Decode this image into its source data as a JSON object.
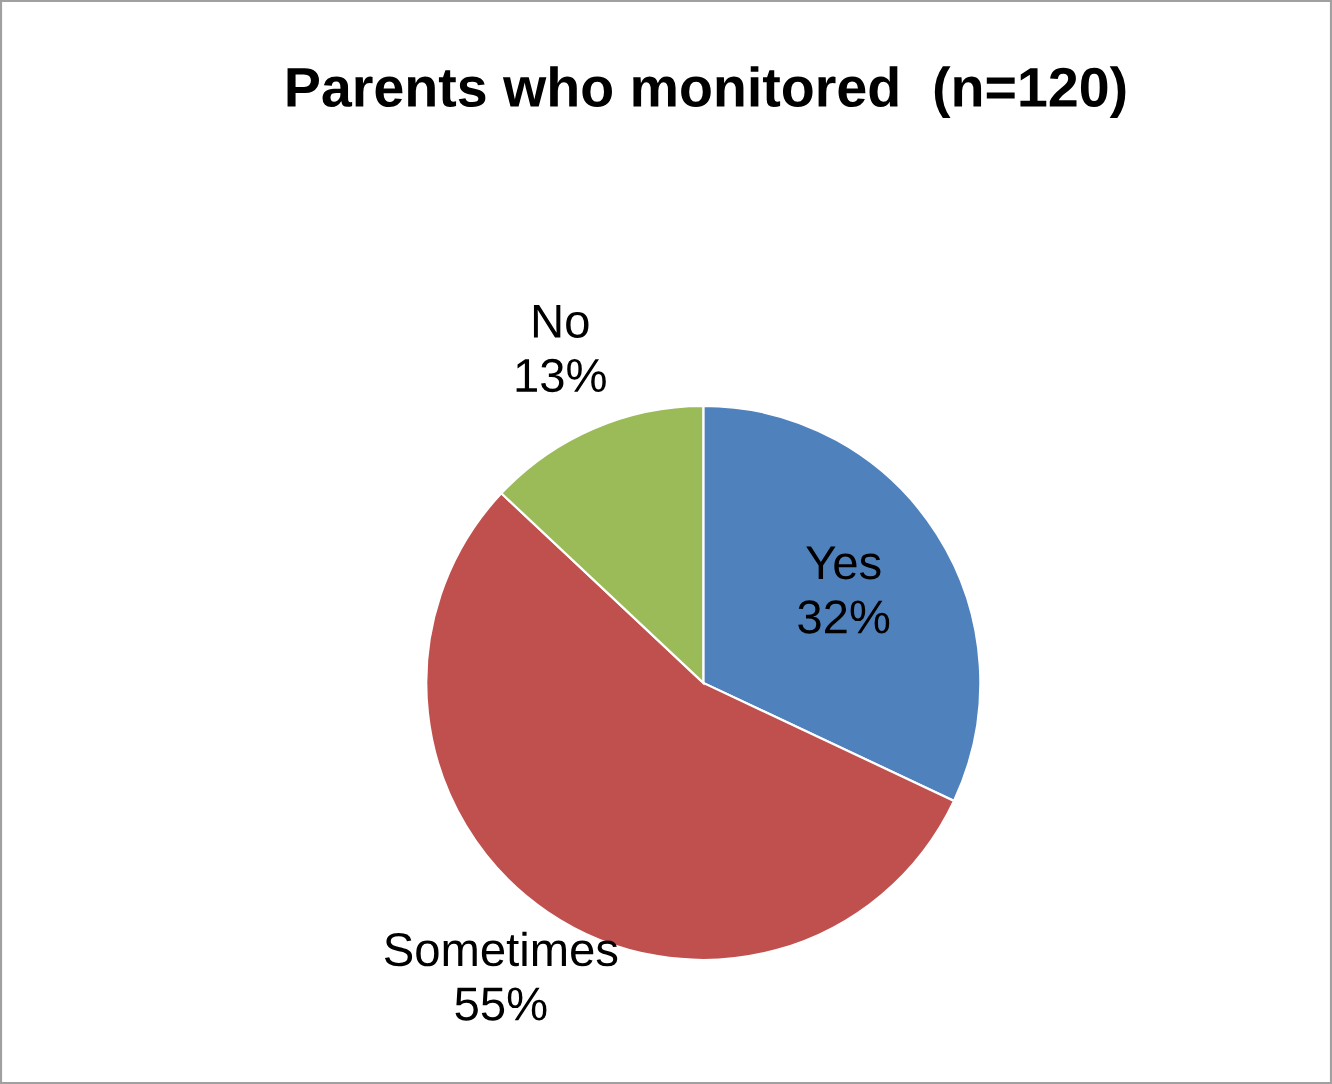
{
  "chart_data": {
    "type": "pie",
    "title": "Parents who monitored  (n=120)",
    "categories": [
      "Yes",
      "Sometimes",
      "No"
    ],
    "values": [
      32,
      55,
      13
    ],
    "value_labels": [
      "32%",
      "55%",
      "13%"
    ],
    "colors": [
      "#4f81bd",
      "#c0504d",
      "#9bbb59"
    ],
    "legend": false
  }
}
